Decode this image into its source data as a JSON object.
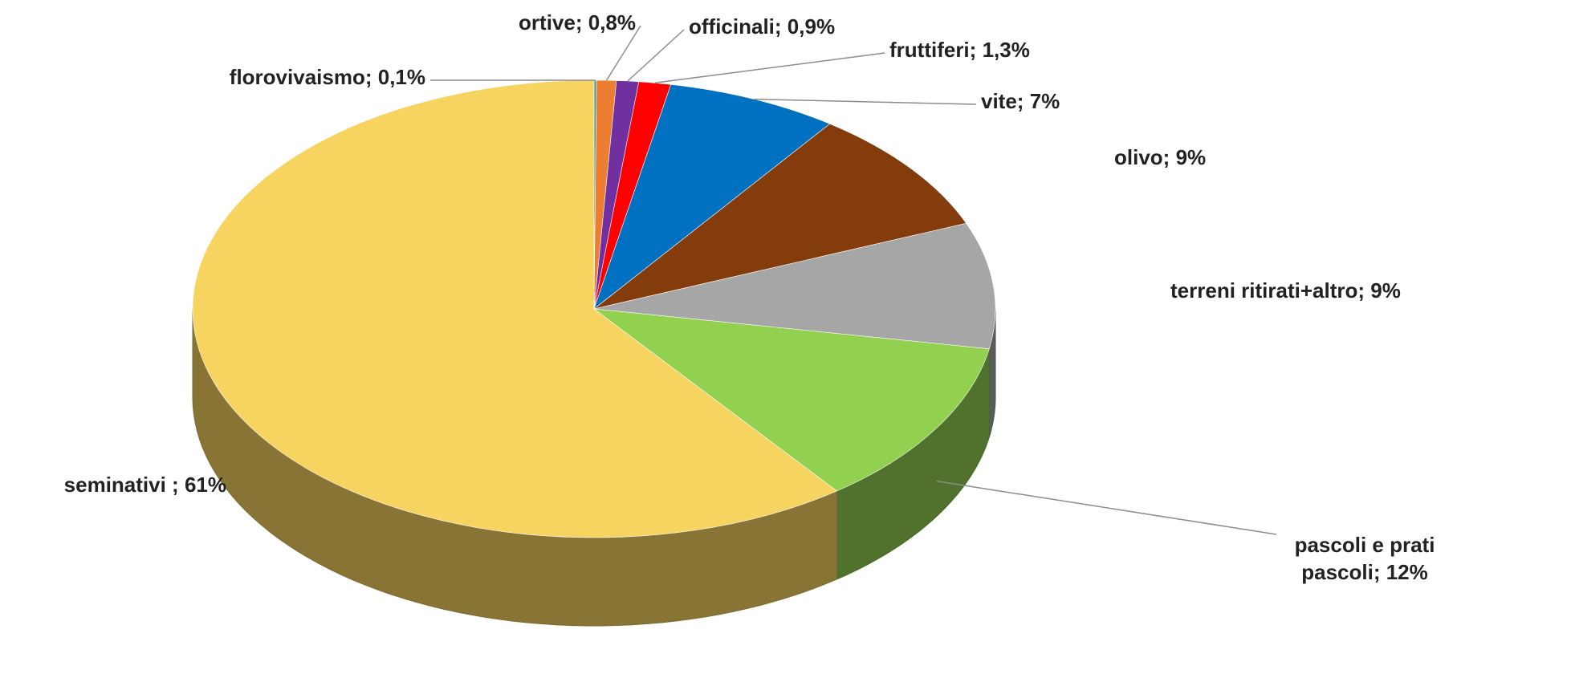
{
  "chart_data": {
    "type": "pie3d",
    "categories": [
      "florovivaismo;",
      "ortive;",
      "officinali;",
      "fruttiferi;",
      "vite;",
      "olivo;",
      "terreni ritirati+altro;",
      "pascoli e prati pascoli;",
      "seminativi ;"
    ],
    "values": [
      0.1,
      0.8,
      0.9,
      1.3,
      7,
      9,
      9,
      12,
      61
    ],
    "value_labels": [
      "0,1%",
      "0,8%",
      "0,9%",
      "1,3%",
      "7%",
      "9%",
      "9%",
      "12%",
      "61%"
    ],
    "colors": [
      "#3a9a9a",
      "#ed7d31",
      "#7030a0",
      "#ff0000",
      "#0070c0",
      "#843c0c",
      "#a6a6a6",
      "#92d050",
      "#f7d360"
    ]
  }
}
